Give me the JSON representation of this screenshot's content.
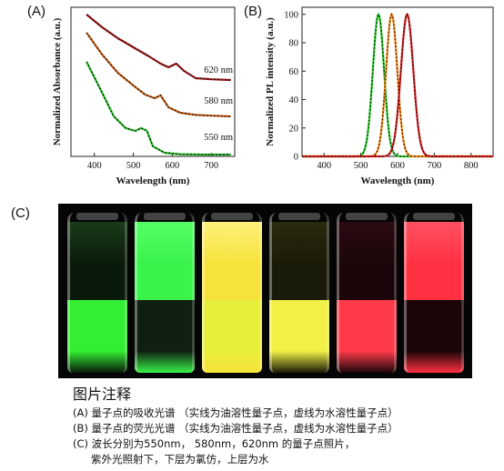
{
  "panels": {
    "a_label": "(A)",
    "b_label": "(B)",
    "c_label": "(C)"
  },
  "chart_data": [
    {
      "type": "line",
      "panel": "A",
      "xlabel": "Wavelength (nm)",
      "ylabel": "Normalized Absorbance (a.u.)",
      "xlim": [
        340,
        760
      ],
      "xticks": [
        400,
        500,
        600,
        700
      ],
      "yticks_shown": false,
      "line_style_note": "solid = oil-soluble, dotted = water-soluble",
      "series": [
        {
          "name": "620 nm",
          "color": "#a01010",
          "x": [
            380,
            420,
            460,
            500,
            540,
            570,
            590,
            610,
            630,
            660,
            700,
            750
          ],
          "y": [
            3.9,
            3.55,
            3.25,
            3.0,
            2.75,
            2.55,
            2.45,
            2.55,
            2.35,
            2.15,
            2.12,
            2.1
          ]
        },
        {
          "name": "580 nm",
          "color": "#c45a10",
          "x": [
            380,
            420,
            460,
            500,
            530,
            555,
            570,
            590,
            620,
            660,
            700,
            750
          ],
          "y": [
            3.4,
            2.8,
            2.3,
            1.95,
            1.7,
            1.6,
            1.68,
            1.35,
            1.2,
            1.14,
            1.12,
            1.1
          ]
        },
        {
          "name": "550 nm",
          "color": "#22bb22",
          "x": [
            380,
            420,
            450,
            480,
            505,
            520,
            535,
            550,
            580,
            620,
            680,
            750
          ],
          "y": [
            2.6,
            1.75,
            1.1,
            0.78,
            0.7,
            0.78,
            0.7,
            0.28,
            0.1,
            0.06,
            0.05,
            0.05
          ]
        }
      ]
    },
    {
      "type": "line",
      "panel": "B",
      "xlabel": "Wavelength (nm)",
      "ylabel": "Normalized PL intensity (a.u.)",
      "xlim": [
        340,
        860
      ],
      "ylim": [
        0,
        105
      ],
      "xticks": [
        400,
        500,
        600,
        700,
        800
      ],
      "yticks": [
        0,
        20,
        40,
        60,
        80,
        100
      ],
      "series": [
        {
          "color": "#22cc22",
          "peak": 548,
          "fwhm": 36
        },
        {
          "color": "#ff8c1a",
          "peak": 584,
          "fwhm": 36
        },
        {
          "color": "#dd1a1a",
          "peak": 626,
          "fwhm": 40
        }
      ]
    }
  ],
  "photo": {
    "vials": [
      {
        "upper": "#0a1a0a",
        "lower": "#33ee33",
        "upper_glow": "#1a3a1a"
      },
      {
        "upper": "#39f24a",
        "lower": "#0f1f10",
        "upper_glow": "#55ff66"
      },
      {
        "upper": "#f6e23a",
        "lower": "#e8ef3a",
        "upper_glow": "#fff07a"
      },
      {
        "upper": "#1a1a08",
        "lower": "#f0f046",
        "upper_glow": "#2a2a10"
      },
      {
        "upper": "#1a0608",
        "lower": "#ff3a4a",
        "upper_glow": "#2a0a10"
      },
      {
        "upper": "#ff3042",
        "lower": "#1a0608",
        "upper_glow": "#ff5060"
      }
    ]
  },
  "caption": {
    "title": "图片注释",
    "line_a": "(A) 量子点的吸收光谱 （实线为油溶性量子点，虚线为水溶性量子点）",
    "line_b": "(B) 量子点的荧光光谱 （实线为油溶性量子点，虚线为水溶性量子点）",
    "line_c1": "(C) 波长分别为550nm， 580nm，620nm 的量子点照片，",
    "line_c2": "紫外光照射下，下层为氯仿，上层为水"
  }
}
